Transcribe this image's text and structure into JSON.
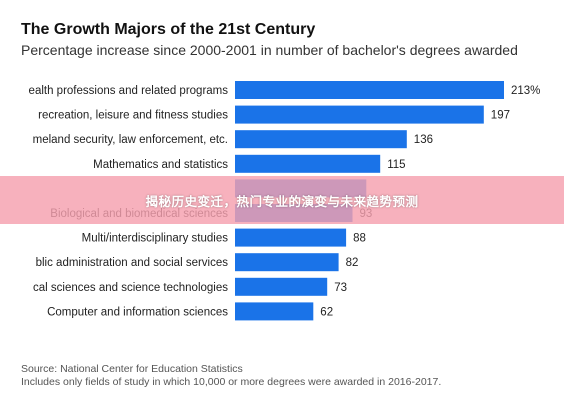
{
  "chart_data": {
    "type": "bar",
    "orientation": "horizontal",
    "title": "The Growth Majors of the 21st Century",
    "subtitle": "Percentage increase since 2000-2001 in number of bachelor's degrees awarded",
    "categories": [
      "ealth professions and related programs",
      "recreation, leisure and fitness studies",
      "meland security, law enforcement, etc.",
      "Mathematics and statistics",
      "",
      "Biological and biomedical sciences",
      "Multi/interdisciplinary studies",
      "blic administration and social services",
      "cal sciences and science technologies",
      "Computer and information sciences"
    ],
    "values": [
      213,
      197,
      136,
      115,
      104,
      93,
      88,
      82,
      73,
      62
    ],
    "value_labels": [
      "213%",
      "197",
      "136",
      "115",
      "",
      "93",
      "88",
      "82",
      "73",
      "62"
    ],
    "bar_color": "#1a73e8",
    "grid": false,
    "legend": "none",
    "xlim": [
      0,
      213
    ]
  },
  "source_lines": [
    "Source: National Center for Education Statistics",
    "Includes only fields of study in which 10,000 or more degrees were awarded in 2016-2017."
  ],
  "overlay_banner": {
    "text": "揭秘历史变迁，热门专业的演变与未来趋势预测",
    "color": "#f5a0af"
  }
}
